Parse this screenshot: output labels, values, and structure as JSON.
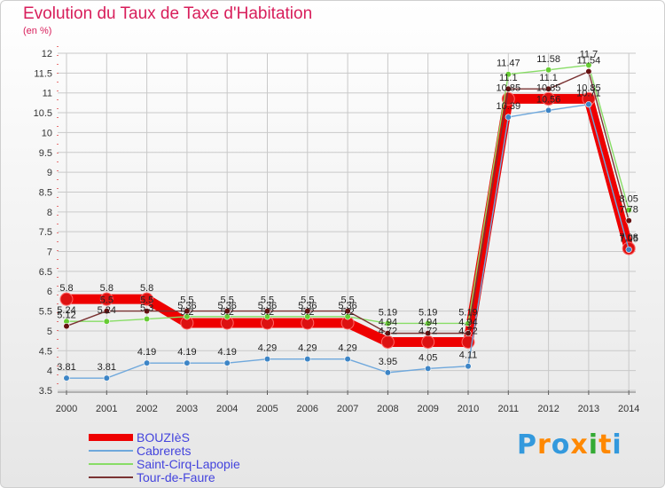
{
  "title": "Evolution du Taux de Taxe d'Habitation",
  "subtitle": "(en %)",
  "logo_text": "Proxiti",
  "logo_colors": [
    "#3399dd",
    "#ff8800",
    "#3399dd",
    "#ff8800",
    "#33aa33",
    "#ff8800",
    "#3399dd"
  ],
  "chart_data": {
    "type": "line",
    "title": "Evolution du Taux de Taxe d'Habitation",
    "ylabel": "(en %)",
    "xlabel": "",
    "x": [
      "2000",
      "2001",
      "2002",
      "2003",
      "2004",
      "2005",
      "2006",
      "2007",
      "2008",
      "2009",
      "2010",
      "2011",
      "2012",
      "2013",
      "2014"
    ],
    "ylim": [
      3.5,
      12
    ],
    "yticks": [
      "3.5",
      "4",
      "4.5",
      "5",
      "5.5",
      "6",
      "6.5",
      "7",
      "7.5",
      "8",
      "8.5",
      "9",
      "9.5",
      "10",
      "10.5",
      "11",
      "11.5",
      "12"
    ],
    "grid": true,
    "legend": "bottom-left",
    "series": [
      {
        "name": "BOUZIèS",
        "color": "#ee0000",
        "marker": "#dd1111",
        "values": [
          5.8,
          5.8,
          5.8,
          5.2,
          5.2,
          5.2,
          5.2,
          5.2,
          4.72,
          4.72,
          4.72,
          10.85,
          10.85,
          10.85,
          7.08
        ],
        "labels": [
          "5.8",
          "5.8",
          "5.8",
          "5.2",
          "5.2",
          "5.2",
          "5.2",
          "5.2",
          "4.72",
          "4.72",
          "4.72",
          "10.85",
          "10.85",
          "10.85",
          "7.08"
        ]
      },
      {
        "name": "Cabrerets",
        "color": "#6fa8dc",
        "marker": "#3d85c6",
        "values": [
          3.81,
          3.81,
          4.19,
          4.19,
          4.19,
          4.29,
          4.29,
          4.29,
          3.95,
          4.05,
          4.11,
          10.39,
          10.56,
          10.71,
          7.05
        ],
        "labels": [
          "3.81",
          "3.81",
          "4.19",
          "4.19",
          "4.19",
          "4.29",
          "4.29",
          "4.29",
          "3.95",
          "4.05",
          "4.11",
          "10.39",
          "10.56",
          "10.71",
          "7.05"
        ]
      },
      {
        "name": "Saint-Cirq-Lapopie",
        "color": "#88dd66",
        "marker": "#66cc33",
        "values": [
          5.24,
          5.24,
          5.3,
          5.36,
          5.36,
          5.36,
          5.36,
          5.36,
          5.19,
          5.19,
          5.19,
          11.47,
          11.58,
          11.7,
          8.05
        ],
        "labels": [
          "5.24",
          "5.24",
          "5.3",
          "5.36",
          "5.36",
          "5.36",
          "5.36",
          "5.36",
          "5.19",
          "5.19",
          "5.19",
          "11.47",
          "11.58",
          "11.7",
          "8.05"
        ]
      },
      {
        "name": "Tour-de-Faure",
        "color": "#7a3333",
        "marker": "#661111",
        "values": [
          5.12,
          5.5,
          5.5,
          5.5,
          5.5,
          5.5,
          5.5,
          5.5,
          4.94,
          4.94,
          4.94,
          11.1,
          11.1,
          11.54,
          7.78
        ],
        "labels": [
          "5.12",
          "5.5",
          "5.5",
          "5.5",
          "5.5",
          "5.5",
          "5.5",
          "5.5",
          "4.94",
          "4.94",
          "4.94",
          "11.1",
          "11.1",
          "11.54",
          "7.78"
        ]
      }
    ]
  }
}
